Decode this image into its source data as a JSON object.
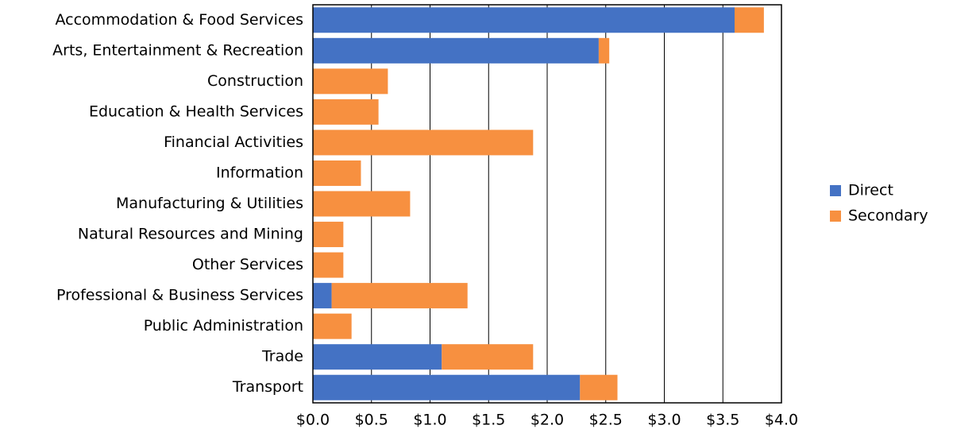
{
  "chart_data": {
    "type": "stacked_bar_horizontal",
    "categories": [
      "Accommodation & Food Services",
      "Arts, Entertainment & Recreation",
      "Construction",
      "Education & Health Services",
      "Financial Activities",
      "Information",
      "Manufacturing & Utilities",
      "Natural Resources and Mining",
      "Other Services",
      "Professional & Business Services",
      "Public Administration",
      "Trade",
      "Transport"
    ],
    "series": [
      {
        "name": "Direct",
        "color": "#4472c4",
        "values": [
          3.6,
          2.44,
          0,
          0,
          0,
          0,
          0,
          0,
          0,
          0.16,
          0,
          1.1,
          2.28
        ]
      },
      {
        "name": "Secondary",
        "color": "#f79040",
        "values": [
          0.25,
          0.09,
          0.64,
          0.56,
          1.88,
          0.41,
          0.83,
          0.26,
          0.26,
          1.16,
          0.33,
          0.78,
          0.32
        ]
      }
    ],
    "xlim": [
      0,
      4
    ],
    "xticks": [
      {
        "value": 0,
        "label": "$0.0"
      },
      {
        "value": 0.5,
        "label": "$0.5"
      },
      {
        "value": 1,
        "label": "$1.0"
      },
      {
        "value": 1.5,
        "label": "$1.5"
      },
      {
        "value": 2,
        "label": "$2.0"
      },
      {
        "value": 2.5,
        "label": "$2.5"
      },
      {
        "value": 3,
        "label": "$3.0"
      },
      {
        "value": 3.5,
        "label": "$3.5"
      },
      {
        "value": 4,
        "label": "$4.0"
      }
    ],
    "grid": true,
    "legend": "right"
  }
}
